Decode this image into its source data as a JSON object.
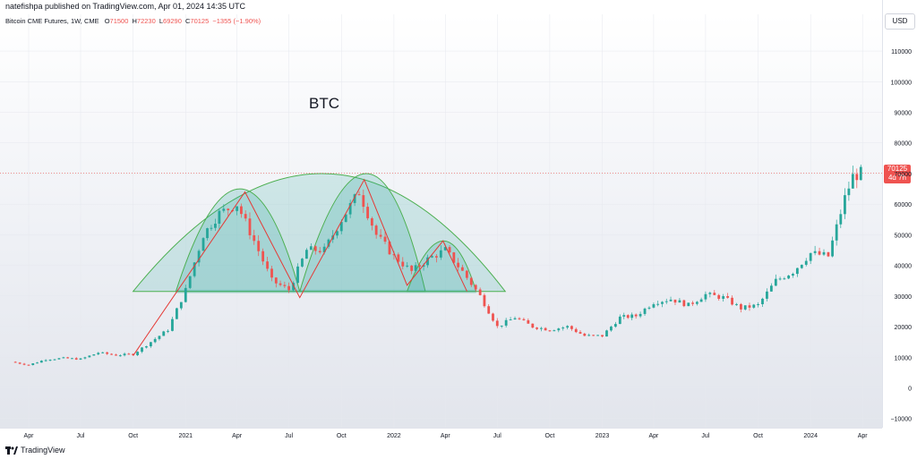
{
  "header": {
    "publisher": "natefishpa published on TradingView.com, Apr 01, 2024 14:35 UTC",
    "symbol": "Bitcoin CME Futures, 1W, CME",
    "open_label": "O",
    "open": "71500",
    "high_label": "H",
    "high": "72230",
    "low_label": "L",
    "low": "69290",
    "close_label": "C",
    "close": "70125",
    "change": "−1355 (−1.90%)"
  },
  "currency": "USD",
  "price_tag": {
    "price": "70125",
    "countdown": "4d 7h"
  },
  "footer": {
    "brand": "TradingView"
  },
  "colors": {
    "up": "#26a69a",
    "down": "#ef5350",
    "pattern_fill": "#26a69a",
    "pattern_stroke": "#4caf50",
    "zigzag": "#e53935"
  },
  "chart_data": {
    "type": "candlestick",
    "title": "BTC",
    "y_ticks": [
      "110000",
      "100000",
      "90000",
      "80000",
      "70000",
      "60000",
      "50000",
      "40000",
      "30000",
      "20000",
      "10000",
      "0",
      "−10000"
    ],
    "y_range": [
      -13000,
      122000
    ],
    "x_ticks": [
      {
        "label": "Apr",
        "date": "2020-04"
      },
      {
        "label": "Jul",
        "date": "2020-07"
      },
      {
        "label": "Oct",
        "date": "2020-10"
      },
      {
        "label": "2021",
        "date": "2021-01"
      },
      {
        "label": "Apr",
        "date": "2021-04"
      },
      {
        "label": "Jul",
        "date": "2021-07"
      },
      {
        "label": "Oct",
        "date": "2021-10"
      },
      {
        "label": "2022",
        "date": "2022-01"
      },
      {
        "label": "Apr",
        "date": "2022-04"
      },
      {
        "label": "Jul",
        "date": "2022-07"
      },
      {
        "label": "Oct",
        "date": "2022-10"
      },
      {
        "label": "2023",
        "date": "2023-01"
      },
      {
        "label": "Apr",
        "date": "2023-04"
      },
      {
        "label": "Jul",
        "date": "2023-07"
      },
      {
        "label": "Oct",
        "date": "2023-10"
      },
      {
        "label": "2024",
        "date": "2024-01"
      },
      {
        "label": "Apr",
        "date": "2024-04"
      }
    ],
    "last_price": 70125,
    "closes": [
      {
        "date": "2020-03-01",
        "close": 8500
      },
      {
        "date": "2020-04-01",
        "close": 7500
      },
      {
        "date": "2020-05-01",
        "close": 9300
      },
      {
        "date": "2020-06-01",
        "close": 9700
      },
      {
        "date": "2020-07-01",
        "close": 9400
      },
      {
        "date": "2020-08-01",
        "close": 11500
      },
      {
        "date": "2020-09-01",
        "close": 10700
      },
      {
        "date": "2020-10-01",
        "close": 11000
      },
      {
        "date": "2020-11-01",
        "close": 15000
      },
      {
        "date": "2020-12-01",
        "close": 19000
      },
      {
        "date": "2021-01-01",
        "close": 32000
      },
      {
        "date": "2021-02-01",
        "close": 50000
      },
      {
        "date": "2021-03-01",
        "close": 57000
      },
      {
        "date": "2021-04-01",
        "close": 60000
      },
      {
        "date": "2021-05-01",
        "close": 48000
      },
      {
        "date": "2021-06-01",
        "close": 35000
      },
      {
        "date": "2021-07-01",
        "close": 32000
      },
      {
        "date": "2021-08-01",
        "close": 45000
      },
      {
        "date": "2021-09-01",
        "close": 45000
      },
      {
        "date": "2021-10-01",
        "close": 55000
      },
      {
        "date": "2021-11-01",
        "close": 64000
      },
      {
        "date": "2021-12-01",
        "close": 50000
      },
      {
        "date": "2022-01-01",
        "close": 43000
      },
      {
        "date": "2022-02-01",
        "close": 38000
      },
      {
        "date": "2022-03-01",
        "close": 42000
      },
      {
        "date": "2022-04-01",
        "close": 45000
      },
      {
        "date": "2022-05-01",
        "close": 38000
      },
      {
        "date": "2022-06-01",
        "close": 30000
      },
      {
        "date": "2022-07-01",
        "close": 20000
      },
      {
        "date": "2022-08-01",
        "close": 23000
      },
      {
        "date": "2022-09-01",
        "close": 20000
      },
      {
        "date": "2022-10-01",
        "close": 19000
      },
      {
        "date": "2022-11-01",
        "close": 20000
      },
      {
        "date": "2022-12-01",
        "close": 17000
      },
      {
        "date": "2023-01-01",
        "close": 17000
      },
      {
        "date": "2023-02-01",
        "close": 23000
      },
      {
        "date": "2023-03-01",
        "close": 23500
      },
      {
        "date": "2023-04-01",
        "close": 28000
      },
      {
        "date": "2023-05-01",
        "close": 29000
      },
      {
        "date": "2023-06-01",
        "close": 27000
      },
      {
        "date": "2023-07-01",
        "close": 30500
      },
      {
        "date": "2023-08-01",
        "close": 29500
      },
      {
        "date": "2023-09-01",
        "close": 26000
      },
      {
        "date": "2023-10-01",
        "close": 27000
      },
      {
        "date": "2023-11-01",
        "close": 35000
      },
      {
        "date": "2023-12-01",
        "close": 38000
      },
      {
        "date": "2024-01-01",
        "close": 44000
      },
      {
        "date": "2024-02-01",
        "close": 43000
      },
      {
        "date": "2024-03-01",
        "close": 62000
      },
      {
        "date": "2024-03-15",
        "close": 69000
      },
      {
        "date": "2024-03-29",
        "close": 70125
      }
    ],
    "annotations": {
      "zigzag": [
        {
          "date": "2020-10-01",
          "price": 10500
        },
        {
          "date": "2021-04-15",
          "price": 64000
        },
        {
          "date": "2021-07-20",
          "price": 29500
        },
        {
          "date": "2021-11-10",
          "price": 68000
        },
        {
          "date": "2022-01-24",
          "price": 33500
        },
        {
          "date": "2022-03-28",
          "price": 48000
        },
        {
          "date": "2022-05-09",
          "price": 31500
        }
      ],
      "neckline": 31500,
      "small_arcs": [
        {
          "start": "2020-12-15",
          "peak": "2021-04-10",
          "end": "2021-07-20",
          "top": 65000
        },
        {
          "start": "2021-07-20",
          "peak": "2021-11-20",
          "end": "2022-02-25",
          "top": 70000
        },
        {
          "start": "2022-01-24",
          "peak": "2022-04-01",
          "end": "2022-05-25",
          "top": 48000
        }
      ],
      "big_arc": {
        "start": "2020-10-01",
        "peak": "2021-09-01",
        "end": "2022-07-15",
        "top": 70000
      }
    }
  }
}
